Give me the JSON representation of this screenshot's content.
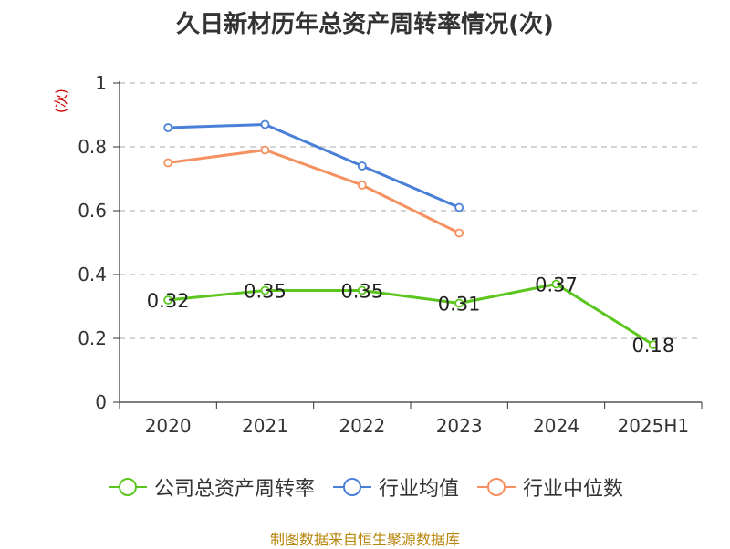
{
  "chart_data": {
    "type": "line",
    "title": "久日新材历年总资产周转率情况(次)",
    "ylabel": "(次)",
    "xlabel": "",
    "categories": [
      "2020",
      "2021",
      "2022",
      "2023",
      "2024",
      "2025H1"
    ],
    "y_ticks": [
      "0",
      "0.2",
      "0.4",
      "0.6",
      "0.8",
      "1"
    ],
    "ylim": [
      0,
      1
    ],
    "grid": true,
    "legend_position": "bottom",
    "series": [
      {
        "name": "公司总资产周转率",
        "color": "#5cc61f",
        "values": [
          0.32,
          0.35,
          0.35,
          0.31,
          0.37,
          0.18
        ],
        "labels": [
          "0.32",
          "0.35",
          "0.35",
          "0.31",
          "0.37",
          "0.18"
        ]
      },
      {
        "name": "行业均值",
        "color": "#4a7fd8",
        "values": [
          0.86,
          0.87,
          0.74,
          0.61,
          null,
          null
        ]
      },
      {
        "name": "行业中位数",
        "color": "#f59060",
        "values": [
          0.75,
          0.79,
          0.68,
          0.53,
          null,
          null
        ]
      }
    ]
  },
  "source": "制图数据来自恒生聚源数据库"
}
